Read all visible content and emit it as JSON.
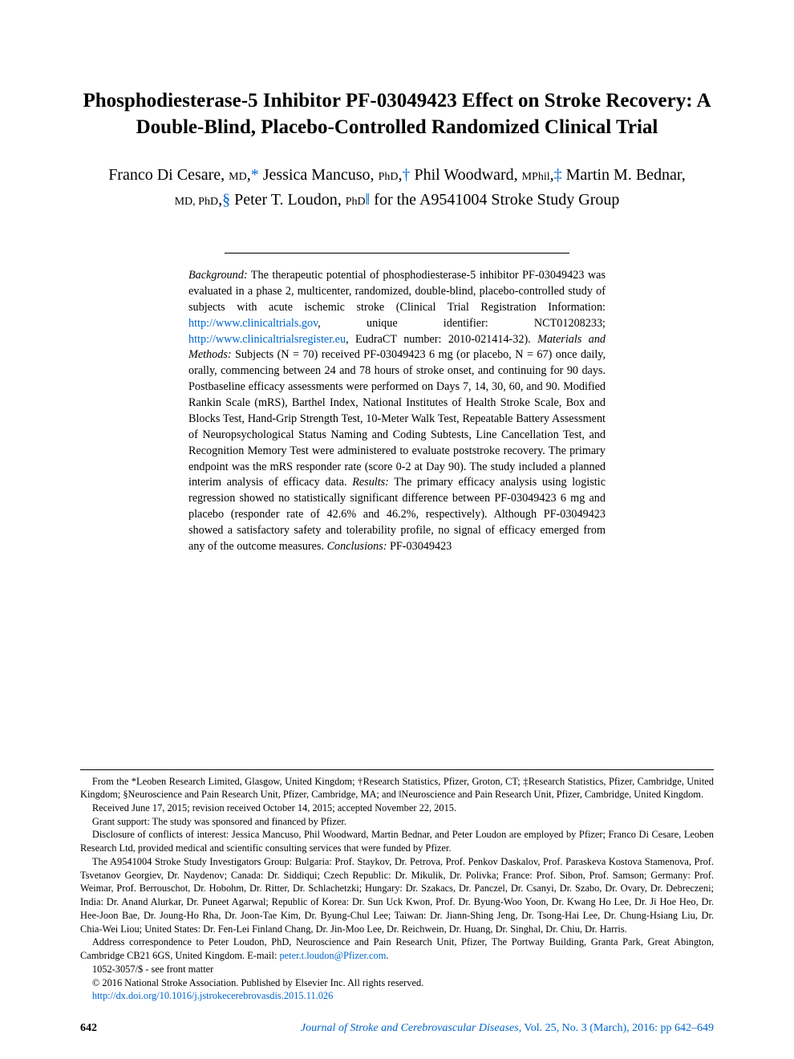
{
  "title": "Phosphodiesterase-5 Inhibitor PF-03049423 Effect on Stroke Recovery: A Double-Blind, Placebo-Controlled Randomized Clinical Trial",
  "authors_html": "Franco Di Cesare, <span class=\"degree\">MD</span>,<span class=\"sym\">*</span> Jessica Mancuso, <span class=\"degree\">PhD</span>,<span class=\"sym\">†</span> Phil Woodward, <span class=\"degree\">MPhil</span>,<span class=\"sym\">‡</span> Martin M. Bednar, <span class=\"degree\">MD, PhD</span>,<span class=\"sym\">§</span> Peter T. Loudon, <span class=\"degree\">PhD</span><span class=\"sym\">‖</span> for the A9541004 Stroke Study Group",
  "abstract_html": "<span class=\"runin\">Background:</span> The therapeutic potential of phosphodiesterase-5 inhibitor PF-03049423 was evaluated in a phase 2, multicenter, randomized, double-blind, placebo-controlled study of subjects with acute ischemic stroke (Clinical Trial Registration Information: <span class=\"link\">http://www.clinicaltrials.gov</span>, unique identifier: NCT01208233; <span class=\"link\">http://www.clinicaltrialsregister.eu</span>, EudraCT number: 2010-021414-32). <span class=\"runin\">Materials and Methods:</span> Subjects (N = 70) received PF-03049423 6 mg (or placebo, N = 67) once daily, orally, commencing between 24 and 78 hours of stroke onset, and continuing for 90 days. Postbaseline efficacy assessments were performed on Days 7, 14, 30, 60, and 90. Modified Rankin Scale (mRS), Barthel Index, National Institutes of Health Stroke Scale, Box and Blocks Test, Hand-Grip Strength Test, 10-Meter Walk Test, Repeatable Battery Assessment of Neuropsychological Status Naming and Coding Subtests, Line Cancellation Test, and Recognition Memory Test were administered to evaluate poststroke recovery. The primary endpoint was the mRS responder rate (score 0-2 at Day 90). The study included a planned interim analysis of efficacy data. <span class=\"runin\">Results:</span> The primary efficacy analysis using logistic regression showed no statistically significant difference between PF-03049423 6 mg and placebo (responder rate of 42.6% and 46.2%, respectively). Although PF-03049423 showed a satisfactory safety and tolerability profile, no signal of efficacy emerged from any of the outcome measures. <span class=\"runin\">Conclusions:</span> PF-03049423",
  "footnotes": {
    "from": "From the *Leoben Research Limited, Glasgow, United Kingdom; †Research Statistics, Pfizer, Groton, CT; ‡Research Statistics, Pfizer, Cambridge, United Kingdom; §Neuroscience and Pain Research Unit, Pfizer, Cambridge, MA; and ‖Neuroscience and Pain Research Unit, Pfizer, Cambridge, United Kingdom.",
    "received": "Received June 17, 2015; revision received October 14, 2015; accepted November 22, 2015.",
    "grant": "Grant support: The study was sponsored and financed by Pfizer.",
    "disclosure": "Disclosure of conflicts of interest: Jessica Mancuso, Phil Woodward, Martin Bednar, and Peter Loudon are employed by Pfizer; Franco Di Cesare, Leoben Research Ltd, provided medical and scientific consulting services that were funded by Pfizer.",
    "investigators": "The A9541004 Stroke Study Investigators Group: Bulgaria: Prof. Staykov, Dr. Petrova, Prof. Penkov Daskalov, Prof. Paraskeva Kostova Stamenova, Prof. Tsvetanov Georgiev, Dr. Naydenov; Canada: Dr. Siddiqui; Czech Republic: Dr. Mikulik, Dr. Polivka; France: Prof. Sibon, Prof. Samson; Germany: Prof. Weimar, Prof. Berrouschot, Dr. Hobohm, Dr. Ritter, Dr. Schlachetzki; Hungary: Dr. Szakacs, Dr. Panczel, Dr. Csanyi, Dr. Szabo, Dr. Ovary, Dr. Debreczeni; India: Dr. Anand Alurkar, Dr. Puneet Agarwal; Republic of Korea: Dr. Sun Uck Kwon, Prof. Dr. Byung-Woo Yoon, Dr. Kwang Ho Lee, Dr. Ji Hoe Heo, Dr. Hee-Joon Bae, Dr. Joung-Ho Rha, Dr. Joon-Tae Kim, Dr. Byung-Chul Lee; Taiwan: Dr. Jiann-Shing Jeng, Dr. Tsong-Hai Lee, Dr. Chung-Hsiang Liu, Dr. Chia-Wei Liou; United States: Dr. Fen-Lei Finland Chang, Dr. Jin-Moo Lee, Dr. Reichwein, Dr. Huang, Dr. Singhal, Dr. Chiu, Dr. Harris.",
    "correspondence_html": "Address correspondence to Peter Loudon, PhD, Neuroscience and Pain Research Unit, Pfizer, The Portway Building, Granta Park, Great Abington, Cambridge CB21 6GS, United Kingdom. E-mail: <span class=\"link\">peter.t.loudon@Pfizer.com</span>.",
    "issn": "1052-3057/$ - see front matter",
    "copyright": "© 2016 National Stroke Association. Published by Elsevier Inc. All rights reserved.",
    "doi": "http://dx.doi.org/10.1016/j.jstrokecerebrovasdis.2015.11.026"
  },
  "footer": {
    "page": "642",
    "journal": "Journal of Stroke and Cerebrovascular Diseases",
    "citation": ", Vol. 25, No. 3 (March), 2016: pp 642–649"
  },
  "colors": {
    "link": "#0066cc",
    "text": "#000000",
    "bg": "#ffffff"
  },
  "typography": {
    "title_fontsize": 25,
    "author_fontsize": 20,
    "abstract_fontsize": 14.2,
    "footnote_fontsize": 12.4,
    "footer_fontsize": 14
  }
}
